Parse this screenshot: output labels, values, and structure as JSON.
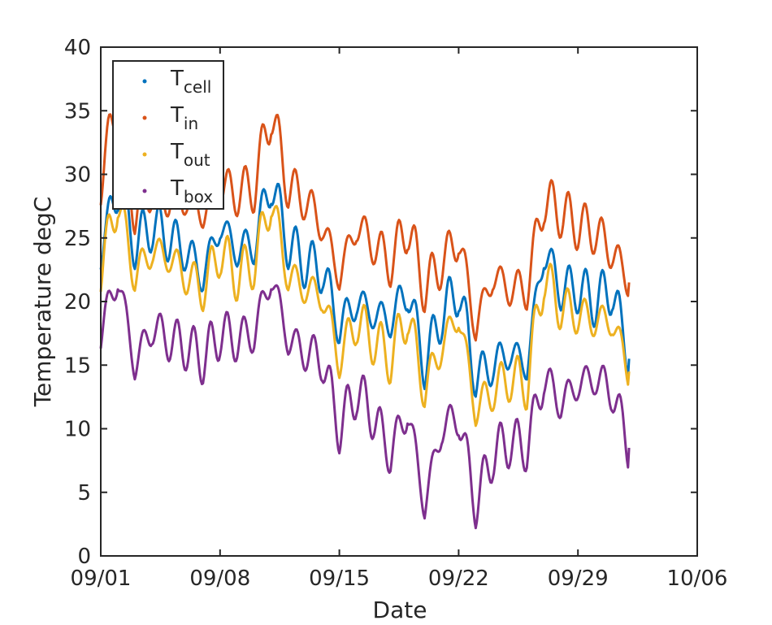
{
  "chart_data": {
    "type": "line",
    "xlabel": "Date",
    "ylabel": "Temperature degC",
    "xlim": [
      "2019-09-01",
      "2019-10-06"
    ],
    "ylim": [
      0,
      40
    ],
    "xtick_values": [
      "2019-09-01",
      "2019-09-08",
      "2019-09-15",
      "2019-09-22",
      "2019-09-29",
      "2019-10-06"
    ],
    "xtick_labels": [
      "09/01",
      "09/08",
      "09/15",
      "09/22",
      "09/29",
      "10/06"
    ],
    "yticks": [
      0,
      5,
      10,
      15,
      20,
      25,
      30,
      35,
      40
    ],
    "grid": false,
    "legend_position": "top-left",
    "x": [
      "2019-09-01",
      "2019-09-02",
      "2019-09-03",
      "2019-09-04",
      "2019-09-05",
      "2019-09-06",
      "2019-09-07",
      "2019-09-08",
      "2019-09-09",
      "2019-09-10",
      "2019-09-11",
      "2019-09-12",
      "2019-09-13",
      "2019-09-14",
      "2019-09-15",
      "2019-09-16",
      "2019-09-17",
      "2019-09-18",
      "2019-09-19",
      "2019-09-20",
      "2019-09-21",
      "2019-09-22",
      "2019-09-23",
      "2019-09-24",
      "2019-09-25",
      "2019-09-26",
      "2019-09-27",
      "2019-09-28",
      "2019-09-29",
      "2019-09-30",
      "2019-10-01",
      "2019-10-02"
    ],
    "series": [
      {
        "name_main": "T",
        "name_sub": "cell",
        "color": "#0072BD",
        "values": [
          24,
          29,
          24.5,
          26,
          25,
          24,
          22,
          26,
          24,
          24.5,
          29.5,
          24.5,
          23,
          22.5,
          18,
          20,
          19,
          18.5,
          21,
          15,
          19,
          21,
          14,
          15,
          16,
          15,
          24,
          21,
          21,
          20,
          21,
          15.5
        ]
      },
      {
        "name_main": "T",
        "name_sub": "in",
        "color": "#D95319",
        "values": [
          29.5,
          36,
          27,
          29,
          28,
          28,
          27,
          29,
          28.5,
          29,
          35,
          29,
          28,
          26,
          22,
          26,
          24.5,
          23,
          26,
          21,
          23,
          25,
          18,
          22,
          21,
          21,
          28,
          27,
          26,
          25.5,
          24,
          21.5
        ]
      },
      {
        "name_main": "T",
        "name_sub": "out",
        "color": "#EDB120",
        "values": [
          22.5,
          28,
          22,
          24,
          23.5,
          22,
          21,
          24,
          22,
          23,
          28,
          22,
          21,
          20.5,
          15.5,
          18.5,
          17,
          15.5,
          19,
          13,
          16.5,
          19,
          11.5,
          13,
          14,
          13.5,
          22,
          19.5,
          19,
          18.5,
          18.5,
          14.5
        ]
      },
      {
        "name_main": "T",
        "name_sub": "box",
        "color": "#7E2F8E",
        "values": [
          17.5,
          22,
          15,
          18,
          17,
          16.5,
          15.5,
          17.5,
          17,
          17.5,
          22,
          17,
          16,
          15.5,
          10,
          13,
          11,
          8,
          11.5,
          4,
          10,
          11,
          4,
          8,
          9,
          8.5,
          14,
          12,
          13.5,
          14,
          13,
          8.5
        ]
      }
    ]
  }
}
